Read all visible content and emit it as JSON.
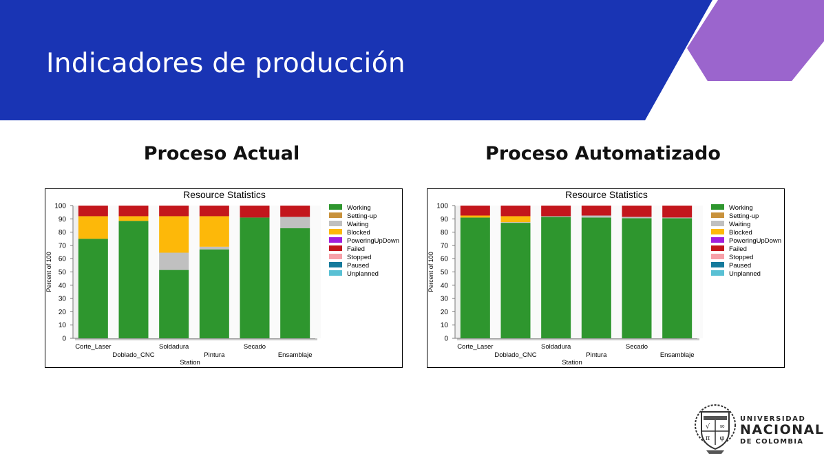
{
  "slide": {
    "title": "Indicadores de producción",
    "headings": [
      "Proceso Actual",
      "Proceso Automatizado"
    ],
    "brand_blue": "#1934b4",
    "accent_purple": "#9b65cd"
  },
  "logo": {
    "line1": "UNIVERSIDAD",
    "line2": "NACIONAL",
    "line3": "DE COLOMBIA"
  },
  "chart_data": [
    {
      "type": "bar",
      "stacked": true,
      "title": "Resource Statistics",
      "xlabel": "Station",
      "ylabel": "Percent of 100",
      "ylim": [
        0,
        100
      ],
      "yticks": [
        0,
        10,
        20,
        30,
        40,
        50,
        60,
        70,
        80,
        90,
        100
      ],
      "grid": false,
      "legend_position": "right",
      "categories": [
        "Corte_Laser",
        "Doblado_CNC",
        "Soldadura",
        "Pintura",
        "Secado",
        "Ensamblaje"
      ],
      "series": [
        {
          "name": "Working",
          "color": "#2e962e",
          "values": [
            75,
            88.5,
            51.5,
            67,
            91,
            83
          ]
        },
        {
          "name": "Setting-up",
          "color": "#c8923c",
          "values": [
            0,
            0,
            0,
            0,
            0,
            0
          ]
        },
        {
          "name": "Waiting",
          "color": "#c0c0c0",
          "values": [
            0,
            0,
            13,
            2,
            0,
            8.5
          ]
        },
        {
          "name": "Blocked",
          "color": "#fdb809",
          "values": [
            17,
            3.5,
            27.5,
            23,
            0,
            0
          ]
        },
        {
          "name": "PoweringUpDown",
          "color": "#a01edd",
          "values": [
            0,
            0,
            0,
            0,
            0,
            0
          ]
        },
        {
          "name": "Failed",
          "color": "#c3161c",
          "values": [
            8,
            8,
            8,
            8,
            9,
            8.5
          ]
        },
        {
          "name": "Stopped",
          "color": "#f7a0a8",
          "values": [
            0,
            0,
            0,
            0,
            0,
            0
          ]
        },
        {
          "name": "Paused",
          "color": "#157a9c",
          "values": [
            0,
            0,
            0,
            0,
            0,
            0
          ]
        },
        {
          "name": "Unplanned",
          "color": "#59c0d4",
          "values": [
            0,
            0,
            0,
            0,
            0,
            0
          ]
        }
      ]
    },
    {
      "type": "bar",
      "stacked": true,
      "title": "Resource Statistics",
      "xlabel": "Station",
      "ylabel": "Percent of 100",
      "ylim": [
        0,
        100
      ],
      "yticks": [
        0,
        10,
        20,
        30,
        40,
        50,
        60,
        70,
        80,
        90,
        100
      ],
      "grid": false,
      "legend_position": "right",
      "categories": [
        "Corte_Laser",
        "Doblado_CNC",
        "Soldadura",
        "Pintura",
        "Secado",
        "Ensamblaje"
      ],
      "series": [
        {
          "name": "Working",
          "color": "#2e962e",
          "values": [
            91,
            87,
            91.5,
            91,
            90.5,
            90.5
          ]
        },
        {
          "name": "Setting-up",
          "color": "#c8923c",
          "values": [
            0,
            0,
            0,
            0,
            0,
            0
          ]
        },
        {
          "name": "Waiting",
          "color": "#c0c0c0",
          "values": [
            0,
            0.5,
            0.5,
            1.5,
            1,
            0.5
          ]
        },
        {
          "name": "Blocked",
          "color": "#fdb809",
          "values": [
            1.5,
            4.5,
            0,
            0,
            0,
            0
          ]
        },
        {
          "name": "PoweringUpDown",
          "color": "#a01edd",
          "values": [
            0,
            0,
            0,
            0,
            0,
            0
          ]
        },
        {
          "name": "Failed",
          "color": "#c3161c",
          "values": [
            7.5,
            8,
            8,
            7.5,
            8.5,
            9
          ]
        },
        {
          "name": "Stopped",
          "color": "#f7a0a8",
          "values": [
            0,
            0,
            0,
            0,
            0,
            0
          ]
        },
        {
          "name": "Paused",
          "color": "#157a9c",
          "values": [
            0,
            0,
            0,
            0,
            0,
            0
          ]
        },
        {
          "name": "Unplanned",
          "color": "#59c0d4",
          "values": [
            0,
            0,
            0,
            0,
            0,
            0
          ]
        }
      ]
    }
  ]
}
